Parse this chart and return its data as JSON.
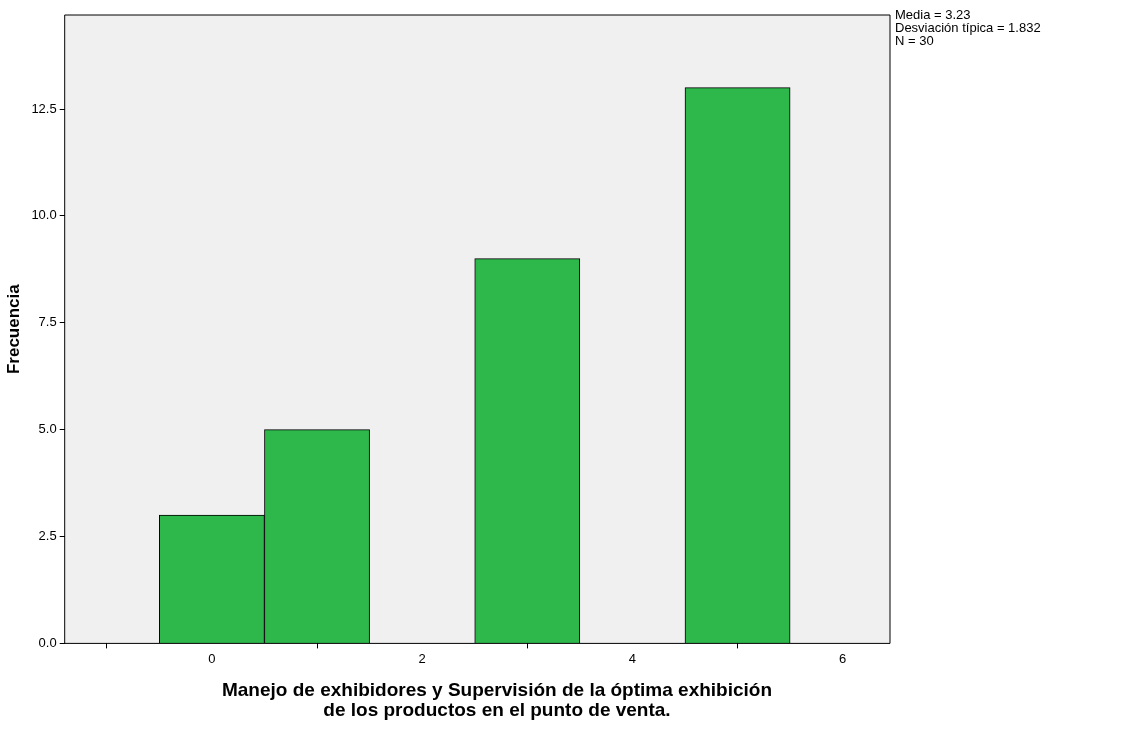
{
  "chart_data": {
    "type": "histogram",
    "xlabel": "Manejo de exhibidores y Supervisión de la óptima exhibición de los productos en el punto de venta.",
    "ylabel": "Frecuencia",
    "bins": [
      -0.5,
      0.5,
      1.5,
      2.5,
      3.5,
      4.5,
      5.5
    ],
    "values": [
      3,
      5,
      0,
      9,
      0,
      13
    ],
    "color": "#2eb84b",
    "xlim": [
      -1.4,
      6.45
    ],
    "xticks": [
      0,
      2,
      4,
      6
    ],
    "ylim": [
      0,
      14.7
    ],
    "yticks": [
      {
        "value": 0,
        "label": "0.0"
      },
      {
        "value": 2.5,
        "label": "2.5"
      },
      {
        "value": 5,
        "label": "5.0"
      },
      {
        "value": 7.5,
        "label": "7.5"
      },
      {
        "value": 10,
        "label": "10.0"
      },
      {
        "value": 12.5,
        "label": "12.5"
      }
    ],
    "grid": false,
    "legend": false,
    "annotations": [
      "Media = 3.23",
      "Desviación típica = 1.832",
      "N = 30"
    ]
  }
}
